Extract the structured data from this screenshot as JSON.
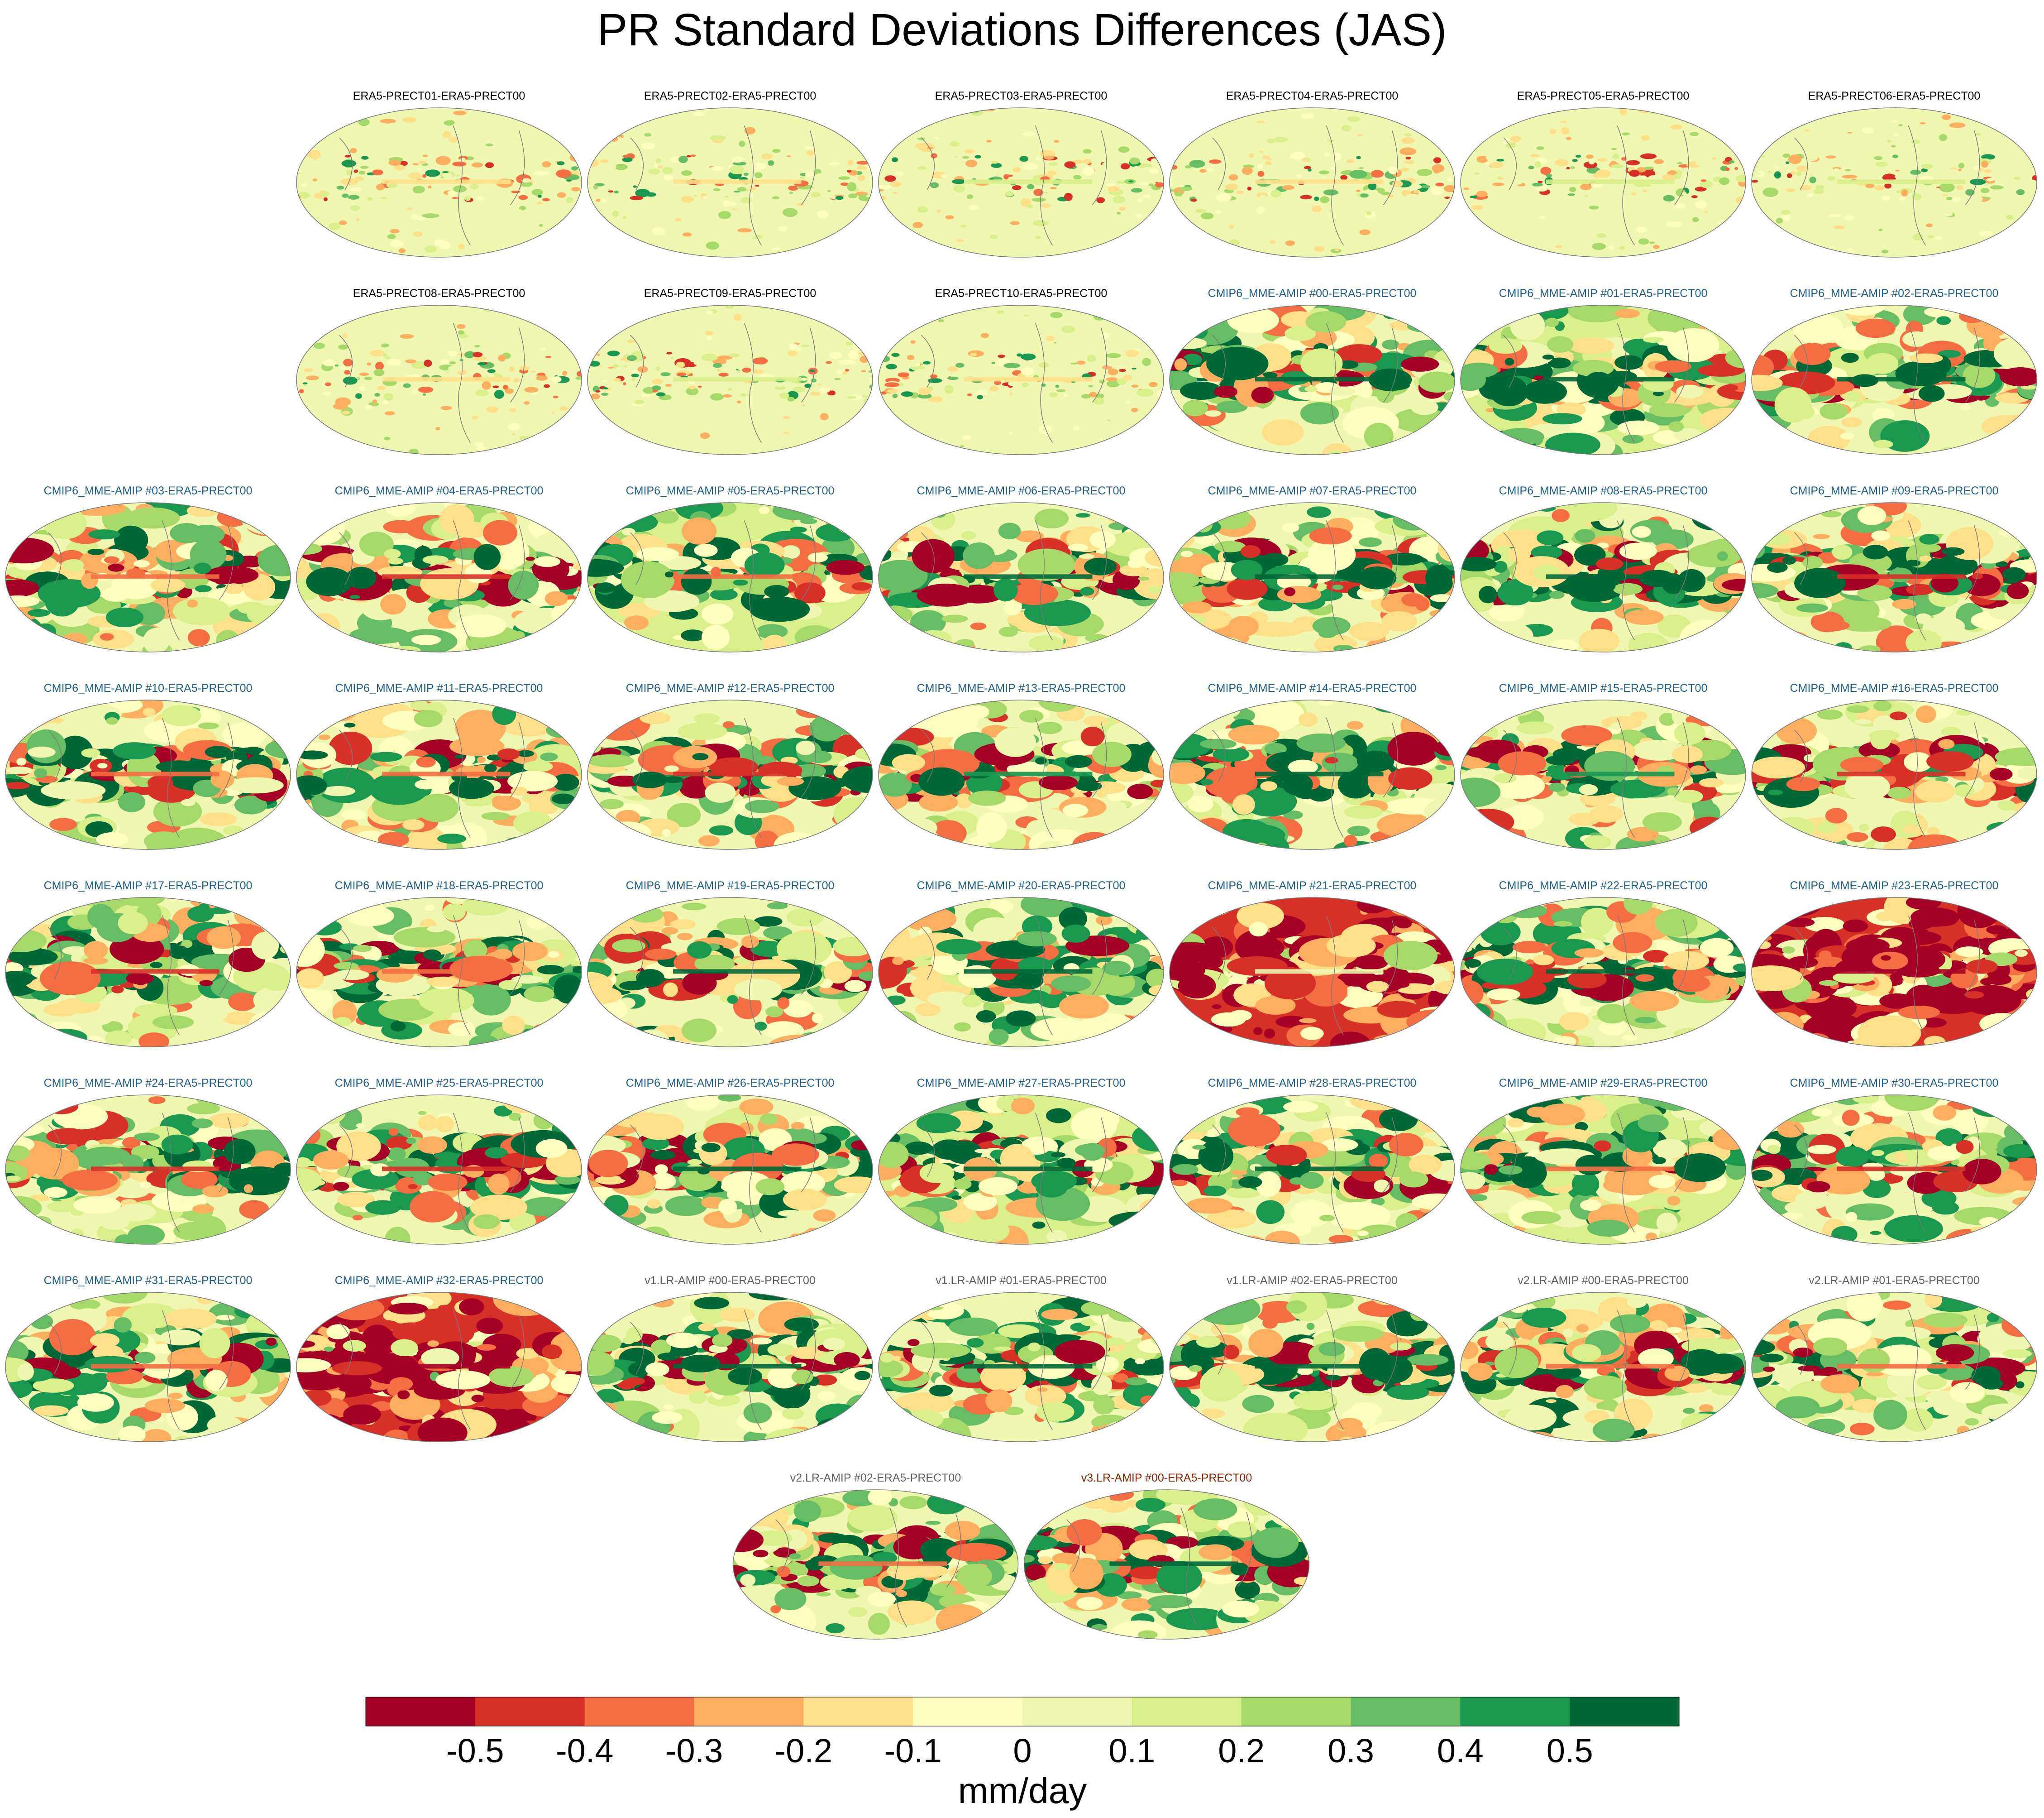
{
  "chart_data": {
    "type": "heatmap",
    "title": "PR Standard Deviations Differences (JAS)",
    "colorbar": {
      "units": "mm/day",
      "tick_labels": [
        "-0.5",
        "-0.4",
        "-0.3",
        "-0.2",
        "-0.1",
        "0",
        "0.1",
        "0.2",
        "0.3",
        "0.4",
        "0.5"
      ],
      "tick_values": [
        -0.5,
        -0.4,
        -0.3,
        -0.2,
        -0.1,
        0,
        0.1,
        0.2,
        0.3,
        0.4,
        0.5
      ],
      "colors": [
        "#a50026",
        "#d73027",
        "#f46d43",
        "#fdae61",
        "#fee08b",
        "#ffffbf",
        "#f0f7b0",
        "#d9ef8b",
        "#a6d96a",
        "#66bd63",
        "#1a9850",
        "#006837"
      ]
    },
    "label_colors": {
      "era5": "#000000",
      "cmip6": "#1f5f8b",
      "v1": "#606060",
      "v2": "#606060",
      "v3": "#8b2500"
    },
    "panels": [
      {
        "label": "ERA5-PRECT01-ERA5-PRECT00",
        "group": "era5",
        "row": 0,
        "col": 1,
        "mean": 0.0
      },
      {
        "label": "ERA5-PRECT02-ERA5-PRECT00",
        "group": "era5",
        "row": 0,
        "col": 2,
        "mean": 0.0
      },
      {
        "label": "ERA5-PRECT03-ERA5-PRECT00",
        "group": "era5",
        "row": 0,
        "col": 3,
        "mean": 0.0
      },
      {
        "label": "ERA5-PRECT04-ERA5-PRECT00",
        "group": "era5",
        "row": 0,
        "col": 4,
        "mean": 0.0
      },
      {
        "label": "ERA5-PRECT05-ERA5-PRECT00",
        "group": "era5",
        "row": 0,
        "col": 5,
        "mean": 0.0
      },
      {
        "label": "ERA5-PRECT06-ERA5-PRECT00",
        "group": "era5",
        "row": 0,
        "col": 6,
        "mean": 0.0
      },
      {
        "label": "ERA5-PRECT08-ERA5-PRECT00",
        "group": "era5",
        "row": 1,
        "col": 1,
        "mean": 0.0
      },
      {
        "label": "ERA5-PRECT09-ERA5-PRECT00",
        "group": "era5",
        "row": 1,
        "col": 2,
        "mean": 0.0
      },
      {
        "label": "ERA5-PRECT10-ERA5-PRECT00",
        "group": "era5",
        "row": 1,
        "col": 3,
        "mean": 0.0
      },
      {
        "label": "CMIP6_MME-AMIP  #00-ERA5-PRECT00",
        "group": "cmip6",
        "row": 1,
        "col": 4,
        "mean": 0.1
      },
      {
        "label": "CMIP6_MME-AMIP  #01-ERA5-PRECT00",
        "group": "cmip6",
        "row": 1,
        "col": 5,
        "mean": 0.15
      },
      {
        "label": "CMIP6_MME-AMIP  #02-ERA5-PRECT00",
        "group": "cmip6",
        "row": 1,
        "col": 6,
        "mean": 0.05
      },
      {
        "label": "CMIP6_MME-AMIP  #03-ERA5-PRECT00",
        "group": "cmip6",
        "row": 2,
        "col": 0,
        "mean": 0.1
      },
      {
        "label": "CMIP6_MME-AMIP  #04-ERA5-PRECT00",
        "group": "cmip6",
        "row": 2,
        "col": 1,
        "mean": 0.05
      },
      {
        "label": "CMIP6_MME-AMIP  #05-ERA5-PRECT00",
        "group": "cmip6",
        "row": 2,
        "col": 2,
        "mean": 0.15
      },
      {
        "label": "CMIP6_MME-AMIP  #06-ERA5-PRECT00",
        "group": "cmip6",
        "row": 2,
        "col": 3,
        "mean": 0.05
      },
      {
        "label": "CMIP6_MME-AMIP  #07-ERA5-PRECT00",
        "group": "cmip6",
        "row": 2,
        "col": 4,
        "mean": 0.05
      },
      {
        "label": "CMIP6_MME-AMIP  #08-ERA5-PRECT00",
        "group": "cmip6",
        "row": 2,
        "col": 5,
        "mean": 0.1
      },
      {
        "label": "CMIP6_MME-AMIP  #09-ERA5-PRECT00",
        "group": "cmip6",
        "row": 2,
        "col": 6,
        "mean": 0.05
      },
      {
        "label": "CMIP6_MME-AMIP  #10-ERA5-PRECT00",
        "group": "cmip6",
        "row": 3,
        "col": 0,
        "mean": 0.1
      },
      {
        "label": "CMIP6_MME-AMIP  #11-ERA5-PRECT00",
        "group": "cmip6",
        "row": 3,
        "col": 1,
        "mean": 0.1
      },
      {
        "label": "CMIP6_MME-AMIP  #12-ERA5-PRECT00",
        "group": "cmip6",
        "row": 3,
        "col": 2,
        "mean": 0.05
      },
      {
        "label": "CMIP6_MME-AMIP  #13-ERA5-PRECT00",
        "group": "cmip6",
        "row": 3,
        "col": 3,
        "mean": 0.0
      },
      {
        "label": "CMIP6_MME-AMIP  #14-ERA5-PRECT00",
        "group": "cmip6",
        "row": 3,
        "col": 4,
        "mean": 0.05
      },
      {
        "label": "CMIP6_MME-AMIP  #15-ERA5-PRECT00",
        "group": "cmip6",
        "row": 3,
        "col": 5,
        "mean": 0.0
      },
      {
        "label": "CMIP6_MME-AMIP  #16-ERA5-PRECT00",
        "group": "cmip6",
        "row": 3,
        "col": 6,
        "mean": 0.0
      },
      {
        "label": "CMIP6_MME-AMIP  #17-ERA5-PRECT00",
        "group": "cmip6",
        "row": 4,
        "col": 0,
        "mean": 0.05
      },
      {
        "label": "CMIP6_MME-AMIP  #18-ERA5-PRECT00",
        "group": "cmip6",
        "row": 4,
        "col": 1,
        "mean": 0.1
      },
      {
        "label": "CMIP6_MME-AMIP  #19-ERA5-PRECT00",
        "group": "cmip6",
        "row": 4,
        "col": 2,
        "mean": 0.1
      },
      {
        "label": "CMIP6_MME-AMIP  #20-ERA5-PRECT00",
        "group": "cmip6",
        "row": 4,
        "col": 3,
        "mean": 0.1
      },
      {
        "label": "CMIP6_MME-AMIP  #21-ERA5-PRECT00",
        "group": "cmip6",
        "row": 4,
        "col": 4,
        "mean": -0.45
      },
      {
        "label": "CMIP6_MME-AMIP  #22-ERA5-PRECT00",
        "group": "cmip6",
        "row": 4,
        "col": 5,
        "mean": 0.05
      },
      {
        "label": "CMIP6_MME-AMIP  #23-ERA5-PRECT00",
        "group": "cmip6",
        "row": 4,
        "col": 6,
        "mean": -0.45
      },
      {
        "label": "CMIP6_MME-AMIP  #24-ERA5-PRECT00",
        "group": "cmip6",
        "row": 5,
        "col": 0,
        "mean": 0.0
      },
      {
        "label": "CMIP6_MME-AMIP  #25-ERA5-PRECT00",
        "group": "cmip6",
        "row": 5,
        "col": 1,
        "mean": 0.05
      },
      {
        "label": "CMIP6_MME-AMIP  #26-ERA5-PRECT00",
        "group": "cmip6",
        "row": 5,
        "col": 2,
        "mean": 0.1
      },
      {
        "label": "CMIP6_MME-AMIP  #27-ERA5-PRECT00",
        "group": "cmip6",
        "row": 5,
        "col": 3,
        "mean": 0.15
      },
      {
        "label": "CMIP6_MME-AMIP  #28-ERA5-PRECT00",
        "group": "cmip6",
        "row": 5,
        "col": 4,
        "mean": 0.1
      },
      {
        "label": "CMIP6_MME-AMIP  #29-ERA5-PRECT00",
        "group": "cmip6",
        "row": 5,
        "col": 5,
        "mean": 0.15
      },
      {
        "label": "CMIP6_MME-AMIP  #30-ERA5-PRECT00",
        "group": "cmip6",
        "row": 5,
        "col": 6,
        "mean": 0.05
      },
      {
        "label": "CMIP6_MME-AMIP  #31-ERA5-PRECT00",
        "group": "cmip6",
        "row": 6,
        "col": 0,
        "mean": 0.1
      },
      {
        "label": "CMIP6_MME-AMIP  #32-ERA5-PRECT00",
        "group": "cmip6",
        "row": 6,
        "col": 1,
        "mean": -0.45
      },
      {
        "label": "v1.LR-AMIP  #00-ERA5-PRECT00",
        "group": "v1",
        "row": 6,
        "col": 2,
        "mean": 0.1
      },
      {
        "label": "v1.LR-AMIP  #01-ERA5-PRECT00",
        "group": "v1",
        "row": 6,
        "col": 3,
        "mean": 0.1
      },
      {
        "label": "v1.LR-AMIP  #02-ERA5-PRECT00",
        "group": "v1",
        "row": 6,
        "col": 4,
        "mean": 0.1
      },
      {
        "label": "v2.LR-AMIP  #00-ERA5-PRECT00",
        "group": "v2",
        "row": 6,
        "col": 5,
        "mean": 0.1
      },
      {
        "label": "v2.LR-AMIP  #01-ERA5-PRECT00",
        "group": "v2",
        "row": 6,
        "col": 6,
        "mean": 0.1
      },
      {
        "label": "v2.LR-AMIP  #02-ERA5-PRECT00",
        "group": "v2",
        "row": 7,
        "col": 2.5,
        "mean": 0.1
      },
      {
        "label": "v3.LR-AMIP  #00-ERA5-PRECT00",
        "group": "v3",
        "row": 7,
        "col": 3.5,
        "mean": 0.1
      }
    ]
  }
}
